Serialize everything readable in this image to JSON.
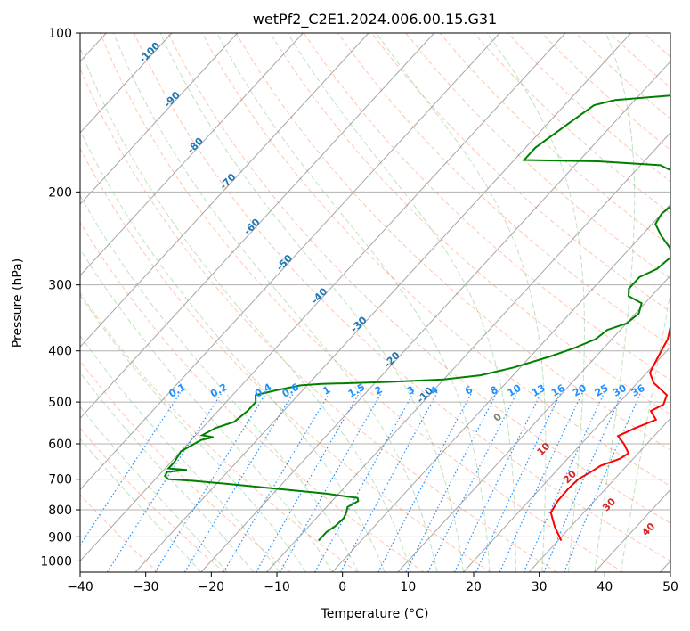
{
  "chart_data": {
    "type": "line",
    "title": "wetPf2_C2E1.2024.006.00.15.G31",
    "xlabel": "Temperature (°C)",
    "ylabel": "Pressure (hPa)",
    "xlim": [
      -40,
      50
    ],
    "ylim": [
      1050,
      100
    ],
    "y_scale": "log",
    "x_ticks": [
      -40,
      -30,
      -20,
      -10,
      0,
      10,
      20,
      30,
      40,
      50
    ],
    "y_ticks": [
      100,
      200,
      300,
      400,
      500,
      600,
      700,
      800,
      900,
      1000
    ],
    "grid": true,
    "series": [
      {
        "color": "#ff0000",
        "points": [
          {
            "t": 30.5,
            "p": 915
          },
          {
            "t": 27.5,
            "p": 860
          },
          {
            "t": 25.0,
            "p": 810
          },
          {
            "t": 24.4,
            "p": 770
          },
          {
            "t": 24.3,
            "p": 730
          },
          {
            "t": 24.5,
            "p": 700
          },
          {
            "t": 25.5,
            "p": 675
          },
          {
            "t": 26.0,
            "p": 660
          },
          {
            "t": 28.0,
            "p": 640
          },
          {
            "t": 28.5,
            "p": 625
          },
          {
            "t": 26.5,
            "p": 600
          },
          {
            "t": 24.5,
            "p": 580
          },
          {
            "t": 26.0,
            "p": 560
          },
          {
            "t": 28.0,
            "p": 540
          },
          {
            "t": 26.0,
            "p": 520
          },
          {
            "t": 27.0,
            "p": 505
          },
          {
            "t": 26.2,
            "p": 485
          },
          {
            "t": 22.5,
            "p": 460
          },
          {
            "t": 20.5,
            "p": 440
          },
          {
            "t": 19.5,
            "p": 410
          },
          {
            "t": 18.5,
            "p": 380
          },
          {
            "t": 16.5,
            "p": 350
          },
          {
            "t": 16.8,
            "p": 320
          },
          {
            "t": 16.5,
            "p": 300
          },
          {
            "t": 14.5,
            "p": 285
          },
          {
            "t": 10.0,
            "p": 265
          },
          {
            "t": 7.5,
            "p": 250
          },
          {
            "t": 4.5,
            "p": 230
          },
          {
            "t": 2.0,
            "p": 215
          },
          {
            "t": -0.5,
            "p": 200
          },
          {
            "t": 0.0,
            "p": 190
          },
          {
            "t": 3.5,
            "p": 180
          },
          {
            "t": 8.5,
            "p": 170
          },
          {
            "t": 9.0,
            "p": 162
          },
          {
            "t": 7.5,
            "p": 155
          },
          {
            "t": 3.0,
            "p": 140
          },
          {
            "t": -0.5,
            "p": 125
          },
          {
            "t": -2.5,
            "p": 115
          },
          {
            "t": -4.0,
            "p": 100
          }
        ]
      },
      {
        "color": "#008000",
        "points": [
          {
            "t": -6.5,
            "p": 915
          },
          {
            "t": -6.5,
            "p": 880
          },
          {
            "t": -6.0,
            "p": 860
          },
          {
            "t": -5.8,
            "p": 830
          },
          {
            "t": -6.2,
            "p": 810
          },
          {
            "t": -6.8,
            "p": 790
          },
          {
            "t": -6.0,
            "p": 770
          },
          {
            "t": -6.5,
            "p": 760
          },
          {
            "t": -12.0,
            "p": 745
          },
          {
            "t": -20.0,
            "p": 730
          },
          {
            "t": -28.0,
            "p": 715
          },
          {
            "t": -34.0,
            "p": 705
          },
          {
            "t": -38.0,
            "p": 700
          },
          {
            "t": -39.0,
            "p": 690
          },
          {
            "t": -39.2,
            "p": 678
          },
          {
            "t": -36.5,
            "p": 672
          },
          {
            "t": -39.5,
            "p": 668
          },
          {
            "t": -39.5,
            "p": 650
          },
          {
            "t": -40.0,
            "p": 620
          },
          {
            "t": -38.5,
            "p": 590
          },
          {
            "t": -37.0,
            "p": 583
          },
          {
            "t": -39.0,
            "p": 578
          },
          {
            "t": -38.0,
            "p": 560
          },
          {
            "t": -36.0,
            "p": 545
          },
          {
            "t": -35.5,
            "p": 520
          },
          {
            "t": -35.5,
            "p": 500
          },
          {
            "t": -36.5,
            "p": 485
          },
          {
            "t": -34.0,
            "p": 475
          },
          {
            "t": -31.0,
            "p": 465
          },
          {
            "t": -28.0,
            "p": 462
          },
          {
            "t": -18.0,
            "p": 458
          },
          {
            "t": -10.0,
            "p": 453
          },
          {
            "t": -5.0,
            "p": 445
          },
          {
            "t": -1.0,
            "p": 430
          },
          {
            "t": 3.0,
            "p": 410
          },
          {
            "t": 5.5,
            "p": 395
          },
          {
            "t": 7.5,
            "p": 380
          },
          {
            "t": 8.0,
            "p": 365
          },
          {
            "t": 10.0,
            "p": 355
          },
          {
            "t": 10.5,
            "p": 340
          },
          {
            "t": 9.5,
            "p": 325
          },
          {
            "t": 6.5,
            "p": 315
          },
          {
            "t": 5.5,
            "p": 305
          },
          {
            "t": 5.5,
            "p": 290
          },
          {
            "t": 7.0,
            "p": 280
          },
          {
            "t": 7.5,
            "p": 265
          },
          {
            "t": 6.0,
            "p": 255
          },
          {
            "t": 3.0,
            "p": 242
          },
          {
            "t": 0.5,
            "p": 230
          },
          {
            "t": 0.0,
            "p": 220
          },
          {
            "t": 0.5,
            "p": 210
          },
          {
            "t": -1.0,
            "p": 203
          },
          {
            "t": -1.0,
            "p": 195
          },
          {
            "t": -3.0,
            "p": 185
          },
          {
            "t": -7.0,
            "p": 178
          },
          {
            "t": -17.0,
            "p": 175
          },
          {
            "t": -28.5,
            "p": 174
          },
          {
            "t": -28.5,
            "p": 165
          },
          {
            "t": -27.0,
            "p": 150
          },
          {
            "t": -25.5,
            "p": 137
          },
          {
            "t": -23.0,
            "p": 134
          },
          {
            "t": -14.0,
            "p": 131
          },
          {
            "t": -7.0,
            "p": 127
          },
          {
            "t": -3.5,
            "p": 122
          },
          {
            "t": -2.5,
            "p": 118
          },
          {
            "t": -0.5,
            "p": 115
          },
          {
            "t": -2.0,
            "p": 110
          },
          {
            "t": -4.5,
            "p": 103
          },
          {
            "t": -6.0,
            "p": 100
          }
        ]
      }
    ],
    "isotherm_labels": [
      "-100",
      "-90",
      "-80",
      "-70",
      "-60",
      "-50",
      "-40",
      "-30",
      "-20",
      "-10"
    ],
    "mixing_ratio_labels": [
      "0.1",
      "0.2",
      "0.4",
      "0.6",
      "1",
      "1.5",
      "2",
      "3",
      "4",
      "6",
      "8",
      "10",
      "13",
      "16",
      "20",
      "25",
      "30",
      "36"
    ],
    "moist_adiabat_labels": [
      "0",
      "10",
      "20",
      "30",
      "40"
    ],
    "colors": {
      "temperature": "#ff0000",
      "dewpoint": "#008000",
      "isotherm_label": "#1f77b4",
      "mixing_ratio_label": "#1e90ff",
      "moist_label": "#d62728",
      "grid": "#b0b0b0"
    }
  }
}
